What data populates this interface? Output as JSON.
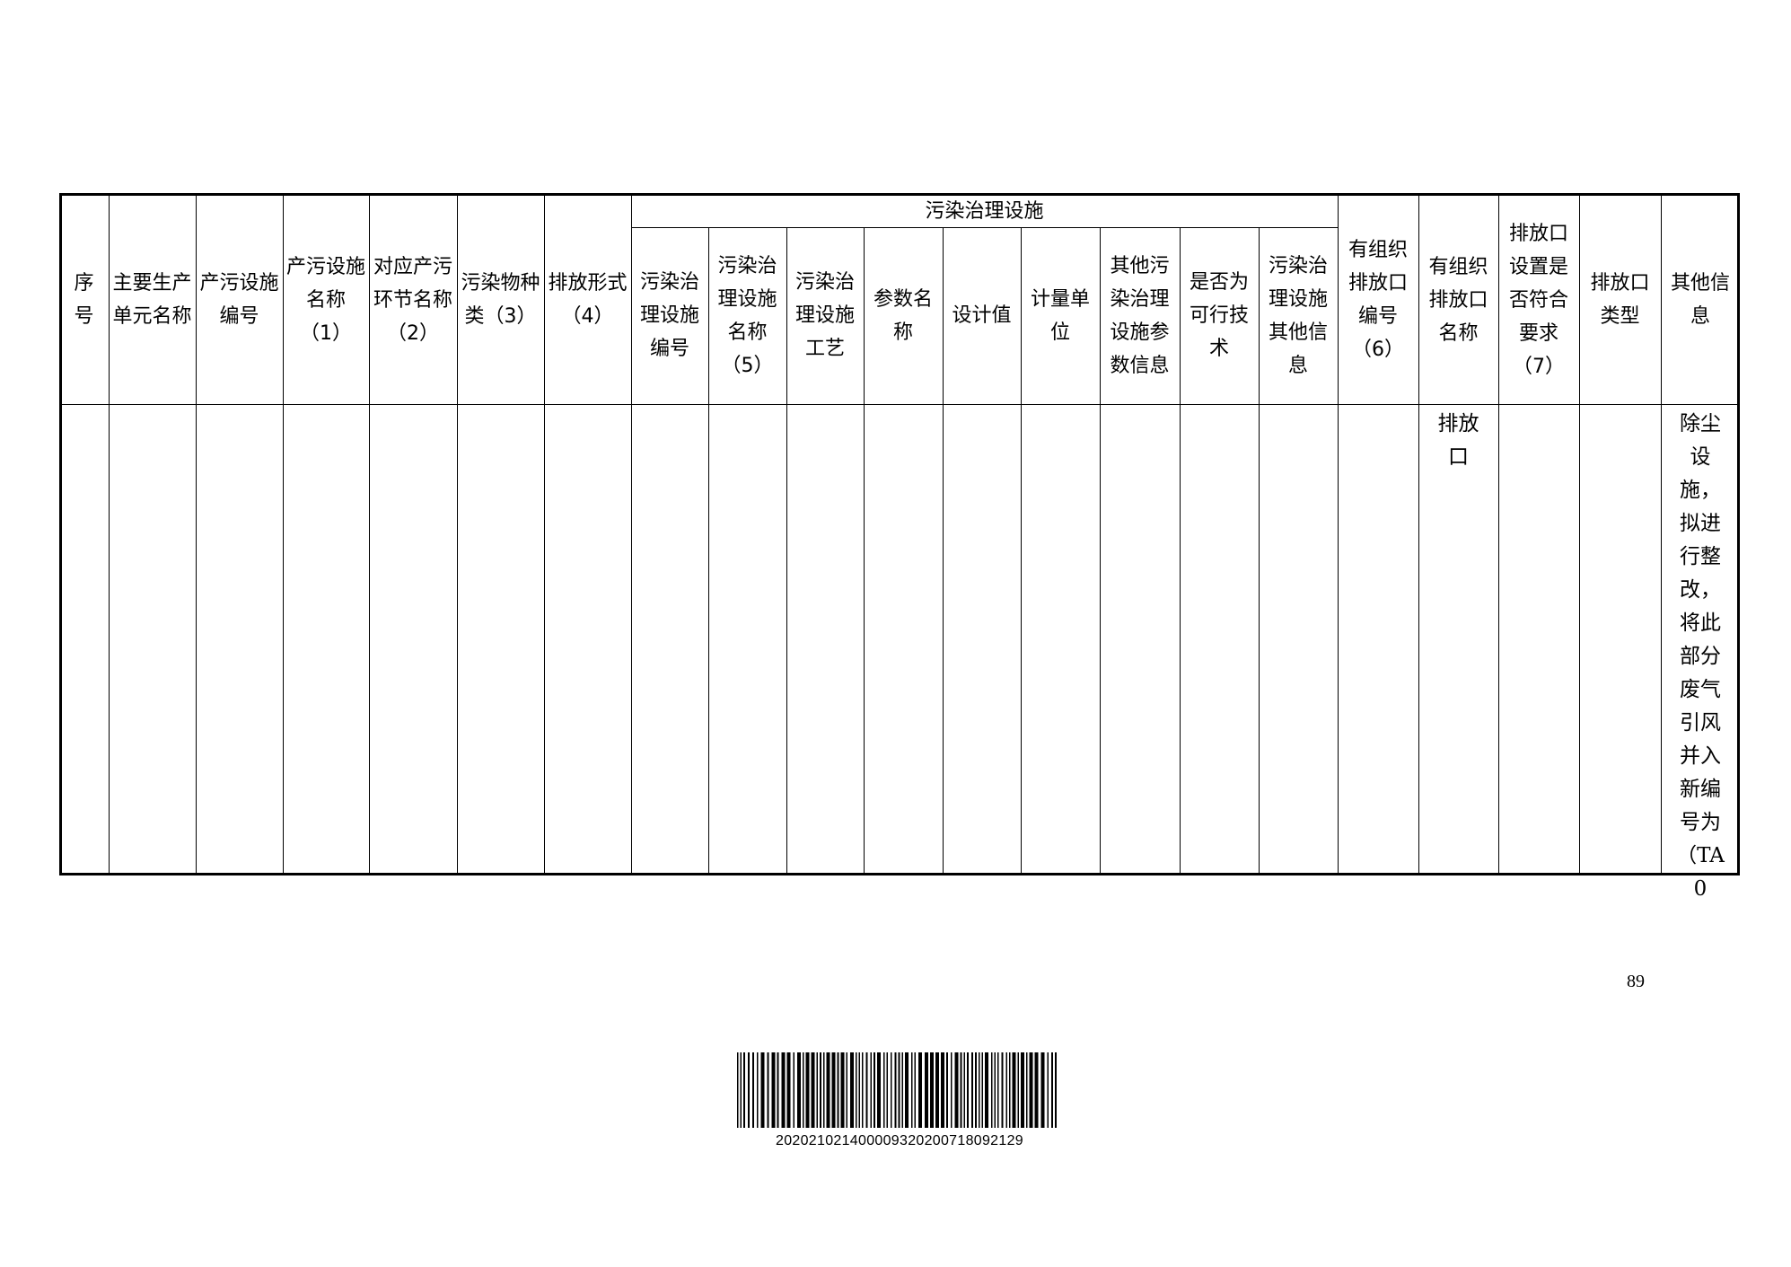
{
  "table": {
    "group_header": "污染治理设施",
    "columns": [
      "序号",
      "主要生产单元名称",
      "产污设施编号",
      "产污设施名称（1）",
      "对应产污环节名称（2）",
      "污染物种类（3）",
      "排放形式（4）",
      "污染治理设施编号",
      "污染治理设施名称（5）",
      "污染治理设施工艺",
      "参数名称",
      "设计值",
      "计量单位",
      "其他污染治理设施参数信息",
      "是否为可行技术",
      "污染治理设施其他信息",
      "有组织排放口编号（6）",
      "有组织排放口名称",
      "排放口设置是否符合要求（7）",
      "排放口类型",
      "其他信息"
    ],
    "rows": [
      [
        "",
        "",
        "",
        "",
        "",
        "",
        "",
        "",
        "",
        "",
        "",
        "",
        "",
        "",
        "",
        "",
        "",
        "排放口",
        "",
        "",
        "除尘设施，拟进行整改，将此部分废气引风并入新编号为（TA0"
      ]
    ]
  },
  "page_number": "89",
  "barcode": {
    "number": "20202102140000932020071809​2129"
  }
}
